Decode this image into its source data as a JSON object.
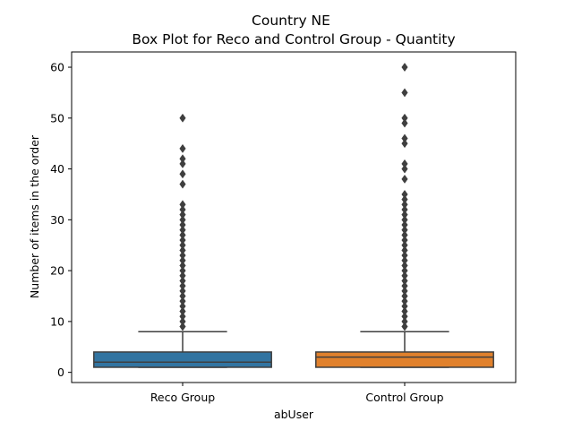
{
  "chart_data": {
    "type": "box",
    "title": "Country NE",
    "subtitle": "Box Plot for Reco and Control Group - Quantity",
    "xlabel": "abUser",
    "ylabel": "Number of items in the order",
    "ylim": [
      -2,
      63
    ],
    "yticks": [
      0,
      10,
      20,
      30,
      40,
      50,
      60
    ],
    "grid": false,
    "categories": [
      "Reco Group",
      "Control Group"
    ],
    "colors": [
      "#3274a1",
      "#e1812c"
    ],
    "edge_color": "#3f3f3f",
    "boxes": [
      {
        "name": "Reco Group",
        "whisker_low": 1,
        "q1": 1,
        "median": 2,
        "q3": 4,
        "whisker_high": 8,
        "outliers": [
          9,
          10,
          11,
          12,
          13,
          14,
          15,
          16,
          17,
          18,
          19,
          20,
          21,
          22,
          23,
          24,
          25,
          26,
          27,
          28,
          29,
          30,
          31,
          32,
          33,
          37,
          39,
          41,
          42,
          44,
          50
        ]
      },
      {
        "name": "Control Group",
        "whisker_low": 1,
        "q1": 1,
        "median": 3,
        "q3": 4,
        "whisker_high": 8,
        "outliers": [
          9,
          10,
          11,
          12,
          13,
          14,
          15,
          16,
          17,
          18,
          19,
          20,
          21,
          22,
          23,
          24,
          25,
          26,
          27,
          28,
          29,
          30,
          31,
          32,
          33,
          34,
          35,
          38,
          40,
          41,
          45,
          46,
          49,
          50,
          55,
          60
        ]
      }
    ]
  }
}
